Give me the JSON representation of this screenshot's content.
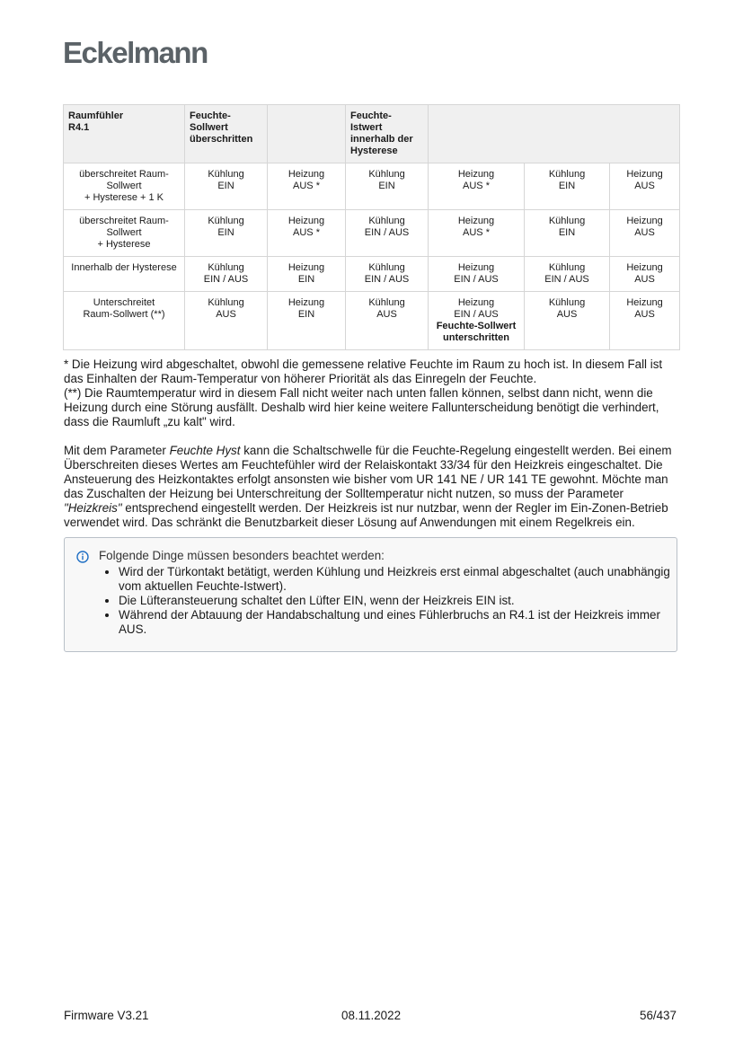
{
  "logo": "Eckelmann",
  "table": {
    "header": [
      "Raumfühler\nR4.1",
      "Feuchte-\nSollwert\nüberschritten",
      "",
      "Feuchte-Istwert\ninnerhalb der\nHysterese",
      "",
      "",
      ""
    ],
    "rows": [
      [
        "überschreitet Raum-\nSollwert\n+ Hysterese + 1 K",
        "Kühlung\nEIN",
        "Heizung\nAUS *",
        "Kühlung\nEIN",
        "Heizung\nAUS *",
        "Kühlung\nEIN",
        "Heizung\nAUS"
      ],
      [
        "überschreitet Raum-\nSollwert\n+ Hysterese",
        "Kühlung\nEIN",
        "Heizung\nAUS *",
        "Kühlung\nEIN / AUS",
        "Heizung\nAUS *",
        "Kühlung\nEIN",
        "Heizung\nAUS"
      ],
      [
        "Innerhalb der Hysterese",
        "Kühlung\nEIN / AUS",
        "Heizung\nEIN",
        "Kühlung\nEIN / AUS",
        "Heizung\nEIN / AUS",
        "Kühlung\nEIN / AUS",
        "Heizung\nAUS"
      ],
      [
        "Unterschreitet\nRaum-Sollwert (**)",
        "Kühlung\nAUS",
        "Heizung\nEIN",
        "Kühlung\nAUS",
        "Heizung\nEIN / AUS",
        "Kühlung\nAUS",
        "Heizung\nAUS"
      ]
    ],
    "bold_note": "Feuchte-Sollwert\nunterschritten"
  },
  "footnotes": [
    "* Die Heizung wird abgeschaltet, obwohl die gemessene relative Feuchte im Raum zu hoch ist. In diesem Fall ist das Einhalten der Raum-Temperatur von höherer Priorität als das Einregeln der Feuchte.",
    "(**) Die Raumtemperatur wird in diesem Fall nicht weiter nach unten fallen können, selbst dann nicht, wenn die Heizung durch eine Störung ausfällt. Deshalb wird hier keine weitere Fallunterscheidung benötigt die verhindert, dass die Raumluft „zu kalt\" wird."
  ],
  "para": {
    "p1": "Mit dem Parameter ",
    "i1": "Feuchte Hyst",
    "p2": " kann die Schaltschwelle für die Feuchte-Regelung eingestellt werden. Bei einem Überschreiten dieses Wertes am Feuchtefühler wird der Relaiskontakt 33/34 für den Heizkreis eingeschaltet. Die Ansteuerung des Heizkontaktes erfolgt ansonsten wie bisher vom UR 141 NE / UR 141 TE gewohnt. Möchte man das Zuschalten der Heizung bei Unterschreitung der Solltemperatur nicht nutzen, so muss der Parameter ",
    "i2": "\"Heizkreis\"",
    "p3": " entsprechend eingestellt werden. Der Heizkreis ist nur nutzbar, wenn der Regler im Ein-Zonen-Betrieb verwendet wird. Das schränkt die Benutzbarkeit dieser Lösung auf Anwendungen mit einem Regelkreis ein."
  },
  "note": {
    "icon": "info-icon",
    "title": "Folgende Dinge müssen besonders beachtet werden:",
    "items": [
      "Wird der Türkontakt betätigt, werden Kühlung und Heizkreis erst einmal abgeschaltet (auch unabhängig vom aktuellen Feuchte-Istwert).",
      "Die Lüfteransteuerung schaltet den Lüfter EIN, wenn der Heizkreis EIN ist.",
      "Während der Abtauung der Handabschaltung und eines Fühlerbruchs an R4.1 ist der Heizkreis immer AUS."
    ],
    "accent": "#1f6fc4"
  },
  "footer": {
    "left": "Firmware V3.21",
    "center": "08.11.2022",
    "right": "56/437"
  }
}
